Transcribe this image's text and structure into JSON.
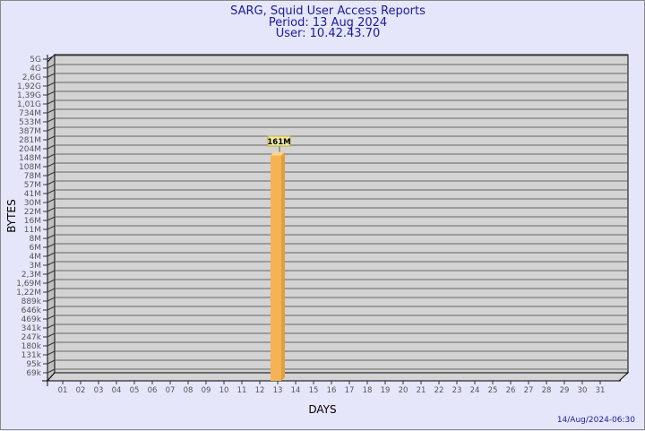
{
  "header": {
    "title": "SARG, Squid User Access Reports",
    "period": "Period: 13 Aug 2024",
    "user": "User: 10.42.43.70"
  },
  "footer": {
    "timestamp": "14/Aug/2024-06:30"
  },
  "colors": {
    "background": "#e6e6fa",
    "wall": "#d3d3d3",
    "bar": "#f5b353",
    "title": "#1a1aa0",
    "label_box": "#f0eaa8"
  },
  "chart_data": {
    "type": "bar",
    "title": "SARG, Squid User Access Reports",
    "xlabel": "DAYS",
    "ylabel": "BYTES",
    "y_scale": "log",
    "categories": [
      "01",
      "02",
      "03",
      "04",
      "05",
      "06",
      "07",
      "08",
      "09",
      "10",
      "11",
      "12",
      "13",
      "14",
      "15",
      "16",
      "17",
      "18",
      "19",
      "20",
      "21",
      "22",
      "23",
      "24",
      "25",
      "26",
      "27",
      "28",
      "29",
      "30",
      "31"
    ],
    "values": [
      0,
      0,
      0,
      0,
      0,
      0,
      0,
      0,
      0,
      0,
      0,
      0,
      161000000,
      0,
      0,
      0,
      0,
      0,
      0,
      0,
      0,
      0,
      0,
      0,
      0,
      0,
      0,
      0,
      0,
      0,
      0
    ],
    "data_labels": {
      "13": "161M"
    },
    "y_tick_labels": [
      "5G",
      "4G",
      "2,6G",
      "1,92G",
      "1,39G",
      "1,01G",
      "734M",
      "533M",
      "387M",
      "281M",
      "204M",
      "148M",
      "108M",
      "78M",
      "57M",
      "41M",
      "30M",
      "22M",
      "16M",
      "11M",
      "8M",
      "6M",
      "4M",
      "3M",
      "2,3M",
      "1,69M",
      "1,22M",
      "889k",
      "646k",
      "469k",
      "341k",
      "247k",
      "180k",
      "131k",
      "95k",
      "69k"
    ],
    "grid": true
  }
}
